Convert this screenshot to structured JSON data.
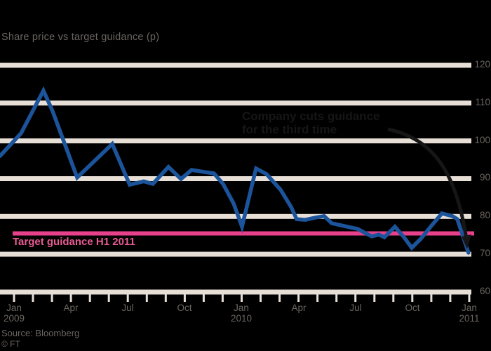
{
  "header": {
    "subtitle": "Share price vs target guidance (p)"
  },
  "annotation": {
    "line1": "Company cuts guidance",
    "line2": "for the third time",
    "arrow_icon": "curved-down-right-arrow"
  },
  "target": {
    "label": "Target guidance H1 2011",
    "value": 75.5
  },
  "footer": {
    "source": "Source: Bloomberg",
    "copyright": "© FT"
  },
  "colors": {
    "background": "#000000",
    "gridline_beige": "#e7dfd6",
    "series_blue": "#1c549b",
    "target_pink": "#e8418c",
    "target_label_pink": "#e75b93",
    "axis_label_gray": "#6b655f",
    "subtitle_gray": "#6b6560",
    "annotation_black": "#161616",
    "source_gray": "#6b6560"
  },
  "chart_data": {
    "type": "line",
    "title": "Share price vs target guidance (p)",
    "xlabel": "",
    "ylabel": "",
    "grid": "horizontal",
    "legend": false,
    "x_axis": {
      "labels": [
        "Jan 2009",
        "Apr",
        "Jul",
        "Oct",
        "Jan 2010",
        "Apr",
        "Jul",
        "Oct",
        "Jan 2011"
      ],
      "tick_count": 25,
      "label_every_n_ticks": 3
    },
    "y_axis": {
      "min": 60,
      "max": 120,
      "gridline_values": [
        120,
        110,
        100,
        90,
        80,
        70,
        60
      ],
      "side": "right"
    },
    "target_value": 75.5,
    "series": [
      {
        "name": "Share price",
        "x": [
          -0.74,
          0.37,
          1.55,
          2.03,
          3.33,
          5.18,
          6.1,
          6.84,
          7.32,
          8.14,
          8.8,
          9.36,
          9.99,
          10.54,
          11.02,
          11.58,
          12.02,
          12.76,
          13.31,
          14.05,
          14.61,
          14.9,
          15.35,
          15.9,
          16.35,
          16.75,
          17.38,
          18.12,
          18.38,
          18.86,
          19.23,
          19.53,
          20.08,
          20.53,
          20.97,
          21.45,
          22.0,
          22.56,
          23.11,
          23.37,
          23.96
        ],
        "values": [
          96.0,
          102.0,
          113.3,
          107.9,
          90.3,
          99.2,
          88.4,
          89.3,
          88.6,
          93.1,
          89.9,
          92.3,
          91.8,
          91.4,
          88.6,
          83.4,
          77.3,
          92.7,
          91.2,
          87.1,
          82.5,
          79.3,
          79.1,
          79.7,
          80.1,
          78.2,
          77.5,
          76.7,
          76.0,
          74.7,
          75.2,
          74.5,
          77.3,
          74.7,
          71.7,
          74.1,
          77.5,
          80.8,
          80.1,
          79.3,
          70.4
        ]
      }
    ]
  }
}
